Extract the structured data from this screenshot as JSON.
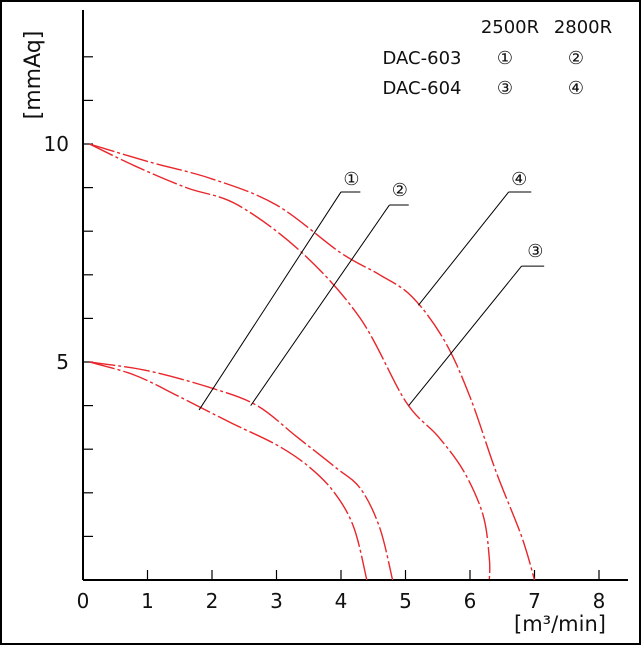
{
  "chart_data": {
    "type": "line",
    "xlabel": "[m³/min]",
    "ylabel": "[mmAq]",
    "xlim": [
      0,
      8.3
    ],
    "ylim": [
      0,
      12.9
    ],
    "x_ticks": [
      "0",
      "1",
      "2",
      "3",
      "4",
      "5",
      "6",
      "7",
      "8"
    ],
    "y_tick_labels": [
      {
        "value": 5,
        "label": "5"
      },
      {
        "value": 10,
        "label": "10"
      }
    ],
    "y_minor_ticks": [
      1,
      2,
      3,
      4,
      5,
      6,
      7,
      8,
      9,
      10,
      11,
      12
    ],
    "grid": false,
    "legend": {
      "header": [
        "2500R",
        "2800R"
      ],
      "rows": [
        {
          "model": "DAC-603",
          "markers": [
            "①",
            "②"
          ]
        },
        {
          "model": "DAC-604",
          "markers": [
            "③",
            "④"
          ]
        }
      ]
    },
    "series": [
      {
        "name": "①",
        "points": [
          [
            0.1,
            5.0
          ],
          [
            0.8,
            4.7
          ],
          [
            1.5,
            4.2
          ],
          [
            2.3,
            3.6
          ],
          [
            3.0,
            3.1
          ],
          [
            3.5,
            2.6
          ],
          [
            3.9,
            2.0
          ],
          [
            4.2,
            1.2
          ],
          [
            4.4,
            0.0
          ]
        ]
      },
      {
        "name": "②",
        "points": [
          [
            0.1,
            5.0
          ],
          [
            1.0,
            4.8
          ],
          [
            2.0,
            4.4
          ],
          [
            2.7,
            4.0
          ],
          [
            3.3,
            3.3
          ],
          [
            3.9,
            2.6
          ],
          [
            4.3,
            2.1
          ],
          [
            4.6,
            1.2
          ],
          [
            4.8,
            0.0
          ]
        ]
      },
      {
        "name": "③",
        "points": [
          [
            0.1,
            10.0
          ],
          [
            0.8,
            9.5
          ],
          [
            1.6,
            9.0
          ],
          [
            2.4,
            8.6
          ],
          [
            3.4,
            7.5
          ],
          [
            4.3,
            6.0
          ],
          [
            5.0,
            4.1
          ],
          [
            5.5,
            3.3
          ],
          [
            5.9,
            2.5
          ],
          [
            6.2,
            1.5
          ],
          [
            6.3,
            0.5
          ],
          [
            6.3,
            0.0
          ]
        ]
      },
      {
        "name": "④",
        "points": [
          [
            0.1,
            10.0
          ],
          [
            1.0,
            9.6
          ],
          [
            2.0,
            9.2
          ],
          [
            3.0,
            8.6
          ],
          [
            4.0,
            7.5
          ],
          [
            4.6,
            7.0
          ],
          [
            5.1,
            6.5
          ],
          [
            5.6,
            5.5
          ],
          [
            6.0,
            4.2
          ],
          [
            6.4,
            2.5
          ],
          [
            6.8,
            1.0
          ],
          [
            7.0,
            0.0
          ]
        ]
      }
    ],
    "callouts": [
      {
        "label": "①",
        "attach": [
          1.8,
          3.9
        ],
        "leader_end": [
          4.0,
          8.9
        ],
        "underline_to": 4.3,
        "label_at": [
          4.1,
          9.1
        ]
      },
      {
        "label": "②",
        "attach": [
          2.6,
          4.0
        ],
        "leader_end": [
          4.75,
          8.6
        ],
        "underline_to": 5.05,
        "label_at": [
          4.85,
          8.85
        ]
      },
      {
        "label": "④",
        "attach": [
          5.2,
          6.3
        ],
        "leader_end": [
          6.6,
          8.9
        ],
        "underline_to": 6.95,
        "label_at": [
          6.7,
          9.1
        ]
      },
      {
        "label": "③",
        "attach": [
          5.05,
          4.0
        ],
        "leader_end": [
          6.8,
          7.2
        ],
        "underline_to": 7.15,
        "label_at": [
          6.95,
          7.45
        ]
      }
    ]
  }
}
